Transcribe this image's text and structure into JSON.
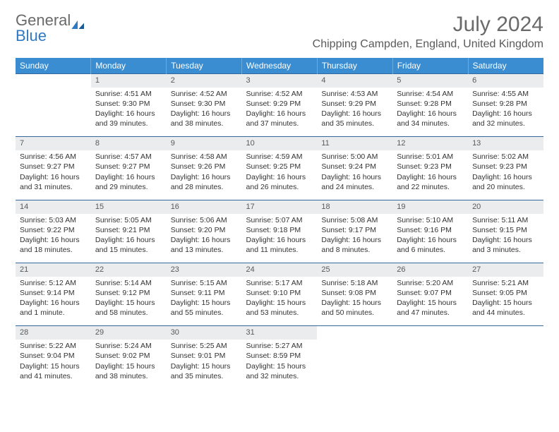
{
  "brand": {
    "part1": "General",
    "part2": "Blue"
  },
  "title": "July 2024",
  "location": "Chipping Campden, England, United Kingdom",
  "colors": {
    "header_bg": "#3a8dd0",
    "header_text": "#ffffff",
    "daynum_bg": "#ebecee",
    "rule": "#34689c",
    "logo_accent": "#2f79c4",
    "body_text": "#333333",
    "muted_text": "#6a6a6a"
  },
  "weekdays": [
    "Sunday",
    "Monday",
    "Tuesday",
    "Wednesday",
    "Thursday",
    "Friday",
    "Saturday"
  ],
  "weeks": [
    [
      null,
      {
        "n": "1",
        "sr": "4:51 AM",
        "ss": "9:30 PM",
        "dl": "16 hours and 39 minutes."
      },
      {
        "n": "2",
        "sr": "4:52 AM",
        "ss": "9:30 PM",
        "dl": "16 hours and 38 minutes."
      },
      {
        "n": "3",
        "sr": "4:52 AM",
        "ss": "9:29 PM",
        "dl": "16 hours and 37 minutes."
      },
      {
        "n": "4",
        "sr": "4:53 AM",
        "ss": "9:29 PM",
        "dl": "16 hours and 35 minutes."
      },
      {
        "n": "5",
        "sr": "4:54 AM",
        "ss": "9:28 PM",
        "dl": "16 hours and 34 minutes."
      },
      {
        "n": "6",
        "sr": "4:55 AM",
        "ss": "9:28 PM",
        "dl": "16 hours and 32 minutes."
      }
    ],
    [
      {
        "n": "7",
        "sr": "4:56 AM",
        "ss": "9:27 PM",
        "dl": "16 hours and 31 minutes."
      },
      {
        "n": "8",
        "sr": "4:57 AM",
        "ss": "9:27 PM",
        "dl": "16 hours and 29 minutes."
      },
      {
        "n": "9",
        "sr": "4:58 AM",
        "ss": "9:26 PM",
        "dl": "16 hours and 28 minutes."
      },
      {
        "n": "10",
        "sr": "4:59 AM",
        "ss": "9:25 PM",
        "dl": "16 hours and 26 minutes."
      },
      {
        "n": "11",
        "sr": "5:00 AM",
        "ss": "9:24 PM",
        "dl": "16 hours and 24 minutes."
      },
      {
        "n": "12",
        "sr": "5:01 AM",
        "ss": "9:23 PM",
        "dl": "16 hours and 22 minutes."
      },
      {
        "n": "13",
        "sr": "5:02 AM",
        "ss": "9:23 PM",
        "dl": "16 hours and 20 minutes."
      }
    ],
    [
      {
        "n": "14",
        "sr": "5:03 AM",
        "ss": "9:22 PM",
        "dl": "16 hours and 18 minutes."
      },
      {
        "n": "15",
        "sr": "5:05 AM",
        "ss": "9:21 PM",
        "dl": "16 hours and 15 minutes."
      },
      {
        "n": "16",
        "sr": "5:06 AM",
        "ss": "9:20 PM",
        "dl": "16 hours and 13 minutes."
      },
      {
        "n": "17",
        "sr": "5:07 AM",
        "ss": "9:18 PM",
        "dl": "16 hours and 11 minutes."
      },
      {
        "n": "18",
        "sr": "5:08 AM",
        "ss": "9:17 PM",
        "dl": "16 hours and 8 minutes."
      },
      {
        "n": "19",
        "sr": "5:10 AM",
        "ss": "9:16 PM",
        "dl": "16 hours and 6 minutes."
      },
      {
        "n": "20",
        "sr": "5:11 AM",
        "ss": "9:15 PM",
        "dl": "16 hours and 3 minutes."
      }
    ],
    [
      {
        "n": "21",
        "sr": "5:12 AM",
        "ss": "9:14 PM",
        "dl": "16 hours and 1 minute."
      },
      {
        "n": "22",
        "sr": "5:14 AM",
        "ss": "9:12 PM",
        "dl": "15 hours and 58 minutes."
      },
      {
        "n": "23",
        "sr": "5:15 AM",
        "ss": "9:11 PM",
        "dl": "15 hours and 55 minutes."
      },
      {
        "n": "24",
        "sr": "5:17 AM",
        "ss": "9:10 PM",
        "dl": "15 hours and 53 minutes."
      },
      {
        "n": "25",
        "sr": "5:18 AM",
        "ss": "9:08 PM",
        "dl": "15 hours and 50 minutes."
      },
      {
        "n": "26",
        "sr": "5:20 AM",
        "ss": "9:07 PM",
        "dl": "15 hours and 47 minutes."
      },
      {
        "n": "27",
        "sr": "5:21 AM",
        "ss": "9:05 PM",
        "dl": "15 hours and 44 minutes."
      }
    ],
    [
      {
        "n": "28",
        "sr": "5:22 AM",
        "ss": "9:04 PM",
        "dl": "15 hours and 41 minutes."
      },
      {
        "n": "29",
        "sr": "5:24 AM",
        "ss": "9:02 PM",
        "dl": "15 hours and 38 minutes."
      },
      {
        "n": "30",
        "sr": "5:25 AM",
        "ss": "9:01 PM",
        "dl": "15 hours and 35 minutes."
      },
      {
        "n": "31",
        "sr": "5:27 AM",
        "ss": "8:59 PM",
        "dl": "15 hours and 32 minutes."
      },
      null,
      null,
      null
    ]
  ],
  "labels": {
    "sunrise": "Sunrise:",
    "sunset": "Sunset:",
    "daylight": "Daylight:"
  }
}
